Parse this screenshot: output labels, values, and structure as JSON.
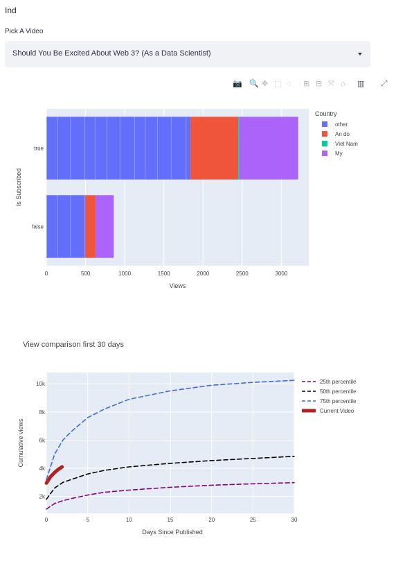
{
  "header": {
    "title": "Ind"
  },
  "picker": {
    "label": "Pick A Video",
    "selected": "Should You Be Excited About Web 3? (As a Data Scientist)"
  },
  "modebar": {
    "icons": [
      "camera-icon",
      "zoom-icon",
      "pan-icon",
      "box-select-icon",
      "lasso-icon",
      "zoom-in-icon",
      "zoom-out-icon",
      "autoscale-icon",
      "reset-axes-icon",
      "plotly-logo-icon"
    ],
    "expand_icon": "fullscreen-icon"
  },
  "chart_data": [
    {
      "type": "bar",
      "orientation": "horizontal",
      "stacked": true,
      "title": "",
      "xlabel": "Views",
      "ylabel": "Is Subscribed",
      "categories": [
        "true",
        "false"
      ],
      "xlim": [
        0,
        3350
      ],
      "xticks": [
        0,
        500,
        1000,
        1500,
        2000,
        2500,
        3000
      ],
      "xtick_labels": [
        "0",
        "500",
        "1000",
        "1500",
        "2000",
        "2500",
        "3000"
      ],
      "legend": {
        "title": "Country",
        "position": "right"
      },
      "series": [
        {
          "name": "other",
          "color": "#636efa",
          "values": [
            1840,
            500
          ]
        },
        {
          "name": "An do",
          "color": "#ef553b",
          "values": [
            610,
            130
          ]
        },
        {
          "name": "Viet Nam",
          "color": "#00cc96",
          "values": [
            15,
            0
          ]
        },
        {
          "name": "My",
          "color": "#ab63fa",
          "values": [
            750,
            230
          ]
        }
      ],
      "grid": true
    },
    {
      "type": "line",
      "title": "View comparison first 30 days",
      "xlabel": "Days Since Published",
      "ylabel": "Cumulative views",
      "xlim": [
        0,
        30
      ],
      "ylim": [
        800,
        10800
      ],
      "xticks": [
        0,
        5,
        10,
        15,
        20,
        25,
        30
      ],
      "xtick_labels": [
        "0",
        "5",
        "10",
        "15",
        "20",
        "25",
        "30"
      ],
      "yticks": [
        2000,
        4000,
        6000,
        8000,
        10000
      ],
      "ytick_labels": [
        "2k",
        "4k",
        "6k",
        "8k",
        "10k"
      ],
      "legend": {
        "position": "right"
      },
      "grid": true,
      "series": [
        {
          "name": "25th percentile",
          "color": "#800080",
          "dash": true,
          "x": [
            0,
            1,
            2,
            3,
            5,
            7,
            10,
            15,
            20,
            25,
            30
          ],
          "y": [
            1100,
            1500,
            1700,
            1850,
            2100,
            2300,
            2450,
            2650,
            2800,
            2900,
            2980
          ]
        },
        {
          "name": "50th percentile",
          "color": "#000000",
          "dash": true,
          "x": [
            0,
            1,
            2,
            3,
            5,
            7,
            10,
            15,
            20,
            25,
            30
          ],
          "y": [
            1800,
            2600,
            3000,
            3200,
            3600,
            3850,
            4100,
            4350,
            4550,
            4700,
            4850
          ]
        },
        {
          "name": "75th percentile",
          "color": "#4169e1",
          "dash": true,
          "x": [
            0,
            1,
            2,
            3,
            4,
            5,
            7,
            10,
            15,
            20,
            25,
            30
          ],
          "y": [
            3200,
            5000,
            6000,
            6600,
            7100,
            7600,
            8200,
            8900,
            9500,
            9900,
            10100,
            10250
          ]
        },
        {
          "name": "Current Video",
          "color": "#b22222",
          "dash": false,
          "x": [
            0,
            0.5,
            1,
            1.5,
            1.9
          ],
          "y": [
            2950,
            3400,
            3700,
            3950,
            4100
          ]
        }
      ]
    }
  ]
}
